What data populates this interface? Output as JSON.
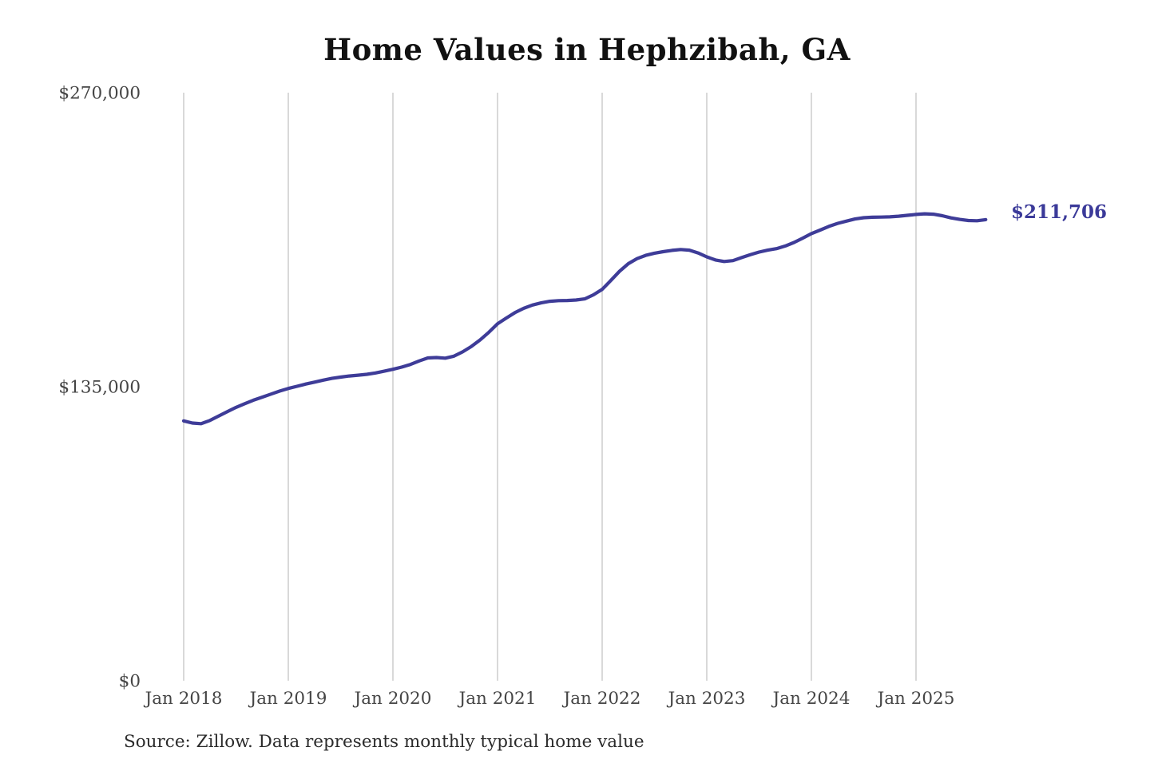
{
  "title": "Home Values in Hephzibah, GA",
  "end_label": "$211,706",
  "source_note": "Source: Zillow. Data represents monthly typical home value",
  "colors": {
    "line": "#3e3c98",
    "end_label": "#3b3a99",
    "grid": "#c9c9c9",
    "tick_text": "#454545",
    "title_text": "#111111",
    "source_text": "#2b2b2b",
    "background": "#ffffff"
  },
  "chart_data": {
    "type": "line",
    "title": "Home Values in Hephzibah, GA",
    "xlabel": "",
    "ylabel": "",
    "ylim": [
      0,
      270000
    ],
    "grid": "vertical-only",
    "legend": "none",
    "y_tick_labels": [
      "$0",
      "$135,000",
      "$270,000"
    ],
    "y_tick_values": [
      0,
      135000,
      270000
    ],
    "x_tick_labels": [
      "Jan 2018",
      "Jan 2019",
      "Jan 2020",
      "Jan 2021",
      "Jan 2022",
      "Jan 2023",
      "Jan 2024",
      "Jan 2025"
    ],
    "series_name": "Typical home value (monthly)",
    "end_annotation": {
      "text": "$211,706",
      "value": 211706
    },
    "months": [
      "2018-01",
      "2018-02",
      "2018-03",
      "2018-04",
      "2018-05",
      "2018-06",
      "2018-07",
      "2018-08",
      "2018-09",
      "2018-10",
      "2018-11",
      "2018-12",
      "2019-01",
      "2019-02",
      "2019-03",
      "2019-04",
      "2019-05",
      "2019-06",
      "2019-07",
      "2019-08",
      "2019-09",
      "2019-10",
      "2019-11",
      "2019-12",
      "2020-01",
      "2020-02",
      "2020-03",
      "2020-04",
      "2020-05",
      "2020-06",
      "2020-07",
      "2020-08",
      "2020-09",
      "2020-10",
      "2020-11",
      "2020-12",
      "2021-01",
      "2021-02",
      "2021-03",
      "2021-04",
      "2021-05",
      "2021-06",
      "2021-07",
      "2021-08",
      "2021-09",
      "2021-10",
      "2021-11",
      "2021-12",
      "2022-01",
      "2022-02",
      "2022-03",
      "2022-04",
      "2022-05",
      "2022-06",
      "2022-07",
      "2022-08",
      "2022-09",
      "2022-10",
      "2022-11",
      "2022-12",
      "2023-01",
      "2023-02",
      "2023-03",
      "2023-04",
      "2023-05",
      "2023-06",
      "2023-07",
      "2023-08",
      "2023-09",
      "2023-10",
      "2023-11",
      "2023-12",
      "2024-01",
      "2024-02",
      "2024-03",
      "2024-04",
      "2024-05",
      "2024-06",
      "2024-07",
      "2024-08",
      "2024-09",
      "2024-10",
      "2024-11",
      "2024-12",
      "2025-01",
      "2025-02",
      "2025-03",
      "2025-04",
      "2025-05",
      "2025-06",
      "2025-07",
      "2025-08",
      "2025-09"
    ],
    "values": [
      119300,
      118300,
      118000,
      119500,
      121500,
      123500,
      125500,
      127200,
      128800,
      130200,
      131600,
      133000,
      134200,
      135200,
      136200,
      137100,
      138000,
      138800,
      139400,
      139900,
      140300,
      140700,
      141300,
      142100,
      143000,
      144000,
      145200,
      146800,
      148200,
      148400,
      148100,
      149000,
      151000,
      153500,
      156500,
      160000,
      163900,
      166500,
      169000,
      171000,
      172500,
      173500,
      174200,
      174500,
      174600,
      174800,
      175300,
      177200,
      179700,
      183800,
      188000,
      191500,
      193800,
      195300,
      196300,
      197000,
      197600,
      198000,
      197700,
      196400,
      194600,
      193200,
      192500,
      192900,
      194300,
      195600,
      196800,
      197700,
      198400,
      199600,
      201200,
      203200,
      205300,
      206900,
      208600,
      210000,
      211000,
      212000,
      212600,
      212800,
      212900,
      213000,
      213300,
      213700,
      214100,
      214400,
      214200,
      213500,
      212500,
      211800,
      211300,
      211200,
      211706
    ]
  }
}
